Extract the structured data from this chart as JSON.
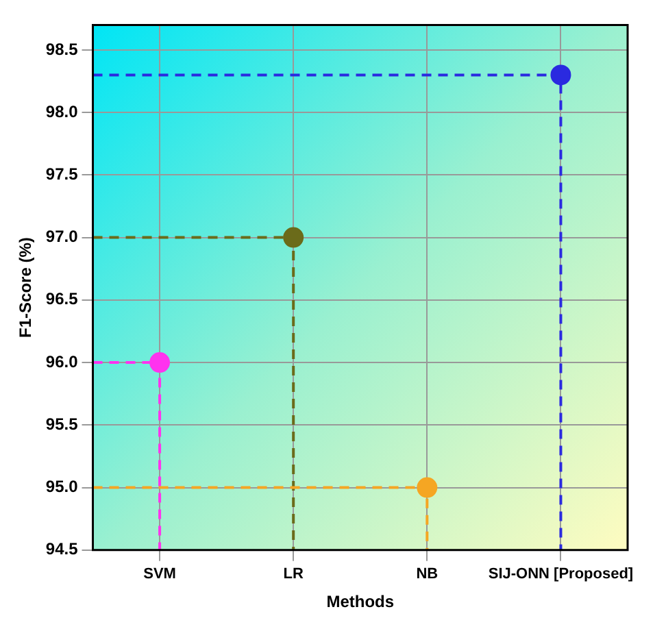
{
  "chart_data": {
    "type": "lollipop",
    "xlabel": "Methods",
    "ylabel": "F1-Score (%)",
    "categories": [
      "SVM",
      "LR",
      "NB",
      "SIJ-ONN [Proposed]"
    ],
    "values": [
      96.0,
      97.0,
      95.0,
      98.3
    ],
    "colors": [
      "#ff33ee",
      "#6b6b1a",
      "#f5a623",
      "#2a2ae0"
    ],
    "ylim": [
      94.5,
      98.7
    ],
    "yticks": [
      94.5,
      {
        "value": 95,
        "label": "95.0"
      },
      95.5,
      {
        "value": 96,
        "label": "96.0"
      },
      96.5,
      {
        "value": 97,
        "label": "97.0"
      },
      97.5,
      {
        "value": 98,
        "label": "98.0"
      },
      98.5
    ],
    "grid": true,
    "legend": false,
    "marker": "circle",
    "line_style": "dashed"
  }
}
